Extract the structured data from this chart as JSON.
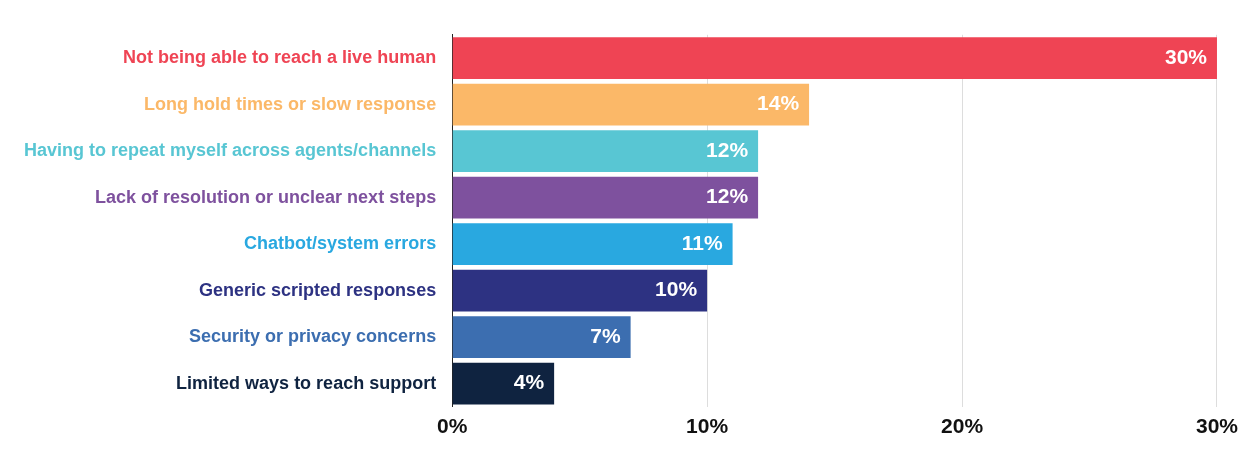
{
  "chart_data": {
    "type": "bar",
    "orientation": "horizontal",
    "categories": [
      "Not being able to reach a live human",
      "Long hold times or slow response",
      "Having to repeat myself across agents/channels",
      "Lack of resolution or unclear next steps",
      "Chatbot/system errors",
      "Generic scripted responses",
      "Security or privacy concerns",
      "Limited ways to reach support"
    ],
    "values": [
      30,
      14,
      12,
      12,
      11,
      10,
      7,
      4
    ],
    "colors": [
      "#ef4454",
      "#fbb868",
      "#58c6d3",
      "#7e519e",
      "#29a8e0",
      "#2d3282",
      "#3c6eb0",
      "#0f2340"
    ],
    "value_labels": [
      "30%",
      "14%",
      "12%",
      "12%",
      "11%",
      "10%",
      "7%",
      "4%"
    ],
    "xlim": [
      0,
      30
    ],
    "xticks": [
      {
        "value": 0,
        "label": "0%"
      },
      {
        "value": 10,
        "label": "10%"
      },
      {
        "value": 20,
        "label": "20%"
      },
      {
        "value": 30,
        "label": "30%"
      }
    ],
    "grid": "x",
    "legend": false
  }
}
